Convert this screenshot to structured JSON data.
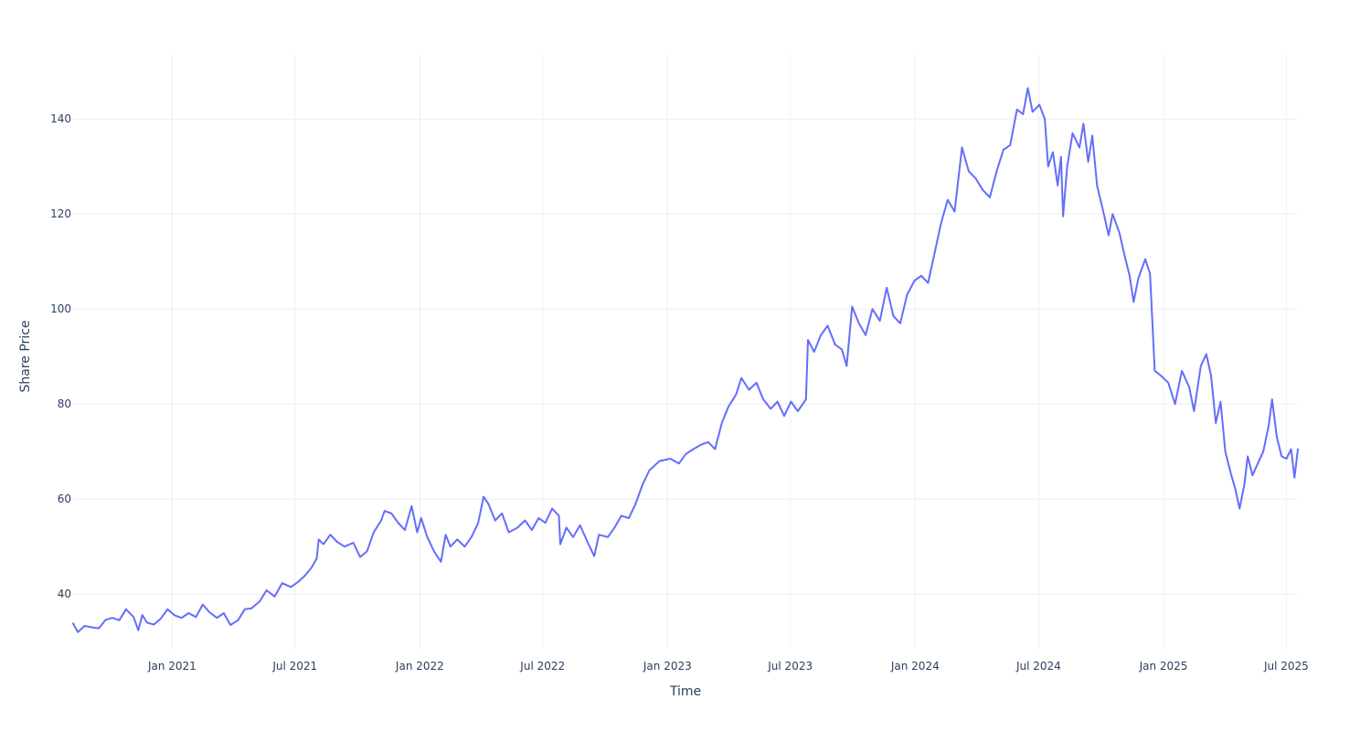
{
  "chart_data": {
    "type": "line",
    "title": "",
    "xlabel": "Time",
    "ylabel": "Share Price",
    "x_range": [
      "2020-08-08",
      "2025-07-18"
    ],
    "ylim": [
      28.5,
      153.5
    ],
    "x_ticks": [
      {
        "date": "2021-01-01",
        "label": "Jan 2021"
      },
      {
        "date": "2021-07-01",
        "label": "Jul 2021"
      },
      {
        "date": "2022-01-01",
        "label": "Jan 2022"
      },
      {
        "date": "2022-07-01",
        "label": "Jul 2022"
      },
      {
        "date": "2023-01-01",
        "label": "Jan 2023"
      },
      {
        "date": "2023-07-01",
        "label": "Jul 2023"
      },
      {
        "date": "2024-01-01",
        "label": "Jan 2024"
      },
      {
        "date": "2024-07-01",
        "label": "Jul 2024"
      },
      {
        "date": "2025-01-01",
        "label": "Jan 2025"
      },
      {
        "date": "2025-07-01",
        "label": "Jul 2025"
      }
    ],
    "y_ticks": [
      {
        "value": 40,
        "label": "40"
      },
      {
        "value": 60,
        "label": "60"
      },
      {
        "value": 80,
        "label": "80"
      },
      {
        "value": 100,
        "label": "100"
      },
      {
        "value": 120,
        "label": "120"
      },
      {
        "value": 140,
        "label": "140"
      }
    ],
    "grid": true,
    "colors": {
      "line": "#636efa",
      "grid": "#ebeef3",
      "text": "#2a3f5f"
    },
    "series": [
      {
        "points": [
          [
            "2020-08-08",
            33.8
          ],
          [
            "2020-08-15",
            32.0
          ],
          [
            "2020-08-25",
            33.3
          ],
          [
            "2020-09-05",
            33.0
          ],
          [
            "2020-09-15",
            32.8
          ],
          [
            "2020-09-25",
            34.6
          ],
          [
            "2020-10-05",
            35.0
          ],
          [
            "2020-10-15",
            34.5
          ],
          [
            "2020-10-25",
            36.8
          ],
          [
            "2020-11-05",
            35.2
          ],
          [
            "2020-11-12",
            32.4
          ],
          [
            "2020-11-18",
            35.6
          ],
          [
            "2020-11-25",
            34.0
          ],
          [
            "2020-12-05",
            33.6
          ],
          [
            "2020-12-15",
            34.8
          ],
          [
            "2020-12-25",
            36.8
          ],
          [
            "2021-01-05",
            35.5
          ],
          [
            "2021-01-15",
            35.0
          ],
          [
            "2021-01-25",
            36.0
          ],
          [
            "2021-02-05",
            35.2
          ],
          [
            "2021-02-15",
            37.8
          ],
          [
            "2021-02-25",
            36.2
          ],
          [
            "2021-03-08",
            35.0
          ],
          [
            "2021-03-18",
            36.0
          ],
          [
            "2021-03-28",
            33.5
          ],
          [
            "2021-04-08",
            34.5
          ],
          [
            "2021-04-18",
            36.8
          ],
          [
            "2021-04-28",
            37.0
          ],
          [
            "2021-05-10",
            38.5
          ],
          [
            "2021-05-20",
            40.8
          ],
          [
            "2021-06-01",
            39.5
          ],
          [
            "2021-06-12",
            42.3
          ],
          [
            "2021-06-25",
            41.5
          ],
          [
            "2021-07-05",
            42.5
          ],
          [
            "2021-07-15",
            43.8
          ],
          [
            "2021-07-25",
            45.5
          ],
          [
            "2021-08-02",
            47.5
          ],
          [
            "2021-08-05",
            51.5
          ],
          [
            "2021-08-12",
            50.5
          ],
          [
            "2021-08-22",
            52.5
          ],
          [
            "2021-09-01",
            51.0
          ],
          [
            "2021-09-12",
            50.0
          ],
          [
            "2021-09-25",
            50.8
          ],
          [
            "2021-10-05",
            47.8
          ],
          [
            "2021-10-15",
            49.0
          ],
          [
            "2021-10-25",
            53.0
          ],
          [
            "2021-11-05",
            55.5
          ],
          [
            "2021-11-10",
            57.5
          ],
          [
            "2021-11-20",
            57.0
          ],
          [
            "2021-11-30",
            55.0
          ],
          [
            "2021-12-10",
            53.5
          ],
          [
            "2021-12-20",
            58.5
          ],
          [
            "2021-12-28",
            53.0
          ],
          [
            "2022-01-03",
            56.0
          ],
          [
            "2022-01-12",
            52.0
          ],
          [
            "2022-01-22",
            49.0
          ],
          [
            "2022-02-01",
            46.8
          ],
          [
            "2022-02-08",
            52.5
          ],
          [
            "2022-02-15",
            50.0
          ],
          [
            "2022-02-25",
            51.5
          ],
          [
            "2022-03-08",
            50.0
          ],
          [
            "2022-03-18",
            52.0
          ],
          [
            "2022-03-28",
            55.0
          ],
          [
            "2022-04-05",
            60.5
          ],
          [
            "2022-04-12",
            59.0
          ],
          [
            "2022-04-22",
            55.5
          ],
          [
            "2022-05-02",
            57.0
          ],
          [
            "2022-05-12",
            53.0
          ],
          [
            "2022-05-25",
            54.0
          ],
          [
            "2022-06-05",
            55.5
          ],
          [
            "2022-06-15",
            53.5
          ],
          [
            "2022-06-25",
            56.0
          ],
          [
            "2022-07-05",
            55.0
          ],
          [
            "2022-07-15",
            58.0
          ],
          [
            "2022-07-25",
            56.5
          ],
          [
            "2022-07-27",
            50.5
          ],
          [
            "2022-08-05",
            54.0
          ],
          [
            "2022-08-15",
            52.0
          ],
          [
            "2022-08-25",
            54.5
          ],
          [
            "2022-09-05",
            51.0
          ],
          [
            "2022-09-15",
            48.0
          ],
          [
            "2022-09-22",
            52.5
          ],
          [
            "2022-10-05",
            52.0
          ],
          [
            "2022-10-15",
            54.0
          ],
          [
            "2022-10-25",
            56.5
          ],
          [
            "2022-11-05",
            56.0
          ],
          [
            "2022-11-15",
            59.0
          ],
          [
            "2022-11-25",
            63.0
          ],
          [
            "2022-12-05",
            66.0
          ],
          [
            "2022-12-20",
            68.0
          ],
          [
            "2023-01-05",
            68.5
          ],
          [
            "2023-01-18",
            67.5
          ],
          [
            "2023-01-28",
            69.5
          ],
          [
            "2023-02-08",
            70.5
          ],
          [
            "2023-02-20",
            71.5
          ],
          [
            "2023-03-02",
            72.0
          ],
          [
            "2023-03-12",
            70.5
          ],
          [
            "2023-03-22",
            76.0
          ],
          [
            "2023-04-01",
            79.5
          ],
          [
            "2023-04-12",
            82.0
          ],
          [
            "2023-04-20",
            85.5
          ],
          [
            "2023-05-01",
            83.0
          ],
          [
            "2023-05-12",
            84.5
          ],
          [
            "2023-05-22",
            81.0
          ],
          [
            "2023-06-02",
            79.0
          ],
          [
            "2023-06-12",
            80.5
          ],
          [
            "2023-06-22",
            77.5
          ],
          [
            "2023-07-02",
            80.5
          ],
          [
            "2023-07-12",
            78.5
          ],
          [
            "2023-07-24",
            81.0
          ],
          [
            "2023-07-27",
            93.5
          ],
          [
            "2023-08-05",
            91.0
          ],
          [
            "2023-08-15",
            94.5
          ],
          [
            "2023-08-25",
            96.5
          ],
          [
            "2023-09-05",
            92.5
          ],
          [
            "2023-09-15",
            91.5
          ],
          [
            "2023-09-22",
            88.0
          ],
          [
            "2023-09-30",
            100.5
          ],
          [
            "2023-10-10",
            97.0
          ],
          [
            "2023-10-20",
            94.5
          ],
          [
            "2023-10-30",
            100.0
          ],
          [
            "2023-11-10",
            97.5
          ],
          [
            "2023-11-20",
            104.5
          ],
          [
            "2023-11-30",
            98.5
          ],
          [
            "2023-12-10",
            97.0
          ],
          [
            "2023-12-20",
            103.0
          ],
          [
            "2023-12-31",
            106.0
          ],
          [
            "2024-01-10",
            107.0
          ],
          [
            "2024-01-20",
            105.5
          ],
          [
            "2024-01-30",
            112.0
          ],
          [
            "2024-02-08",
            118.0
          ],
          [
            "2024-02-18",
            123.0
          ],
          [
            "2024-02-28",
            120.5
          ],
          [
            "2024-03-10",
            134.0
          ],
          [
            "2024-03-20",
            129.0
          ],
          [
            "2024-03-30",
            127.5
          ],
          [
            "2024-04-10",
            125.0
          ],
          [
            "2024-04-20",
            123.5
          ],
          [
            "2024-04-30",
            129.0
          ],
          [
            "2024-05-10",
            133.5
          ],
          [
            "2024-05-20",
            134.5
          ],
          [
            "2024-05-30",
            142.0
          ],
          [
            "2024-06-08",
            141.0
          ],
          [
            "2024-06-15",
            146.5
          ],
          [
            "2024-06-22",
            141.5
          ],
          [
            "2024-07-02",
            143.0
          ],
          [
            "2024-07-10",
            140.0
          ],
          [
            "2024-07-15",
            130.0
          ],
          [
            "2024-07-22",
            133.0
          ],
          [
            "2024-07-29",
            126.0
          ],
          [
            "2024-08-03",
            132.0
          ],
          [
            "2024-08-06",
            119.5
          ],
          [
            "2024-08-12",
            130.0
          ],
          [
            "2024-08-20",
            137.0
          ],
          [
            "2024-08-30",
            134.0
          ],
          [
            "2024-09-05",
            139.0
          ],
          [
            "2024-09-12",
            131.0
          ],
          [
            "2024-09-18",
            136.5
          ],
          [
            "2024-09-25",
            126.0
          ],
          [
            "2024-10-05",
            120.0
          ],
          [
            "2024-10-12",
            115.5
          ],
          [
            "2024-10-18",
            120.0
          ],
          [
            "2024-10-28",
            116.0
          ],
          [
            "2024-11-05",
            111.0
          ],
          [
            "2024-11-12",
            107.0
          ],
          [
            "2024-11-18",
            101.5
          ],
          [
            "2024-11-25",
            106.5
          ],
          [
            "2024-12-05",
            110.5
          ],
          [
            "2024-12-12",
            107.5
          ],
          [
            "2024-12-19",
            87.0
          ],
          [
            "2024-12-28",
            86.0
          ],
          [
            "2025-01-08",
            84.5
          ],
          [
            "2025-01-18",
            80.0
          ],
          [
            "2025-01-28",
            87.0
          ],
          [
            "2025-02-08",
            83.5
          ],
          [
            "2025-02-15",
            78.5
          ],
          [
            "2025-02-25",
            88.0
          ],
          [
            "2025-03-05",
            90.5
          ],
          [
            "2025-03-12",
            86.0
          ],
          [
            "2025-03-19",
            76.0
          ],
          [
            "2025-03-26",
            80.5
          ],
          [
            "2025-04-02",
            70.0
          ],
          [
            "2025-04-10",
            65.5
          ],
          [
            "2025-04-17",
            62.0
          ],
          [
            "2025-04-23",
            58.0
          ],
          [
            "2025-04-30",
            63.0
          ],
          [
            "2025-05-05",
            69.0
          ],
          [
            "2025-05-12",
            65.0
          ],
          [
            "2025-05-20",
            67.5
          ],
          [
            "2025-05-28",
            70.0
          ],
          [
            "2025-06-05",
            75.5
          ],
          [
            "2025-06-10",
            81.0
          ],
          [
            "2025-06-17",
            73.0
          ],
          [
            "2025-06-24",
            69.0
          ],
          [
            "2025-07-01",
            68.5
          ],
          [
            "2025-07-08",
            70.5
          ],
          [
            "2025-07-13",
            64.5
          ],
          [
            "2025-07-18",
            70.5
          ]
        ]
      }
    ]
  }
}
